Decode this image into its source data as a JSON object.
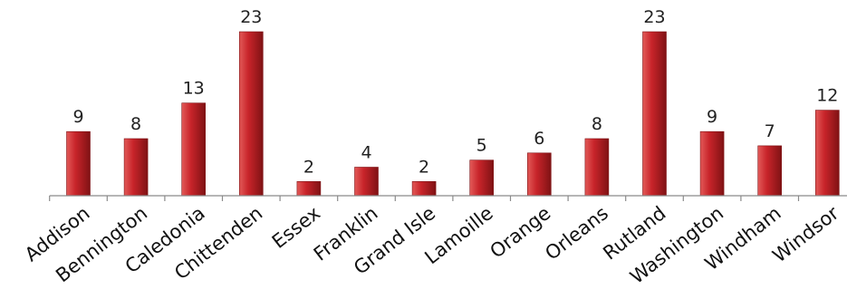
{
  "chart_data": {
    "type": "bar",
    "categories": [
      "Addison",
      "Bennington",
      "Caledonia",
      "Chittenden",
      "Essex",
      "Franklin",
      "Grand Isle",
      "Lamoille",
      "Orange",
      "Orleans",
      "Rutland",
      "Washington",
      "Windham",
      "Windsor"
    ],
    "values": [
      9,
      8,
      13,
      23,
      2,
      4,
      2,
      5,
      6,
      8,
      23,
      9,
      7,
      12
    ],
    "title": "",
    "xlabel": "",
    "ylabel": "",
    "ylim": [
      0,
      23
    ],
    "data_labels": true,
    "grid": false,
    "legend": "none",
    "colors": {
      "bar_light": "#e25a58",
      "bar_mid": "#c8242a",
      "bar_dark": "#7f1214",
      "axis": "#8a8a8a",
      "text": "#111111"
    }
  }
}
